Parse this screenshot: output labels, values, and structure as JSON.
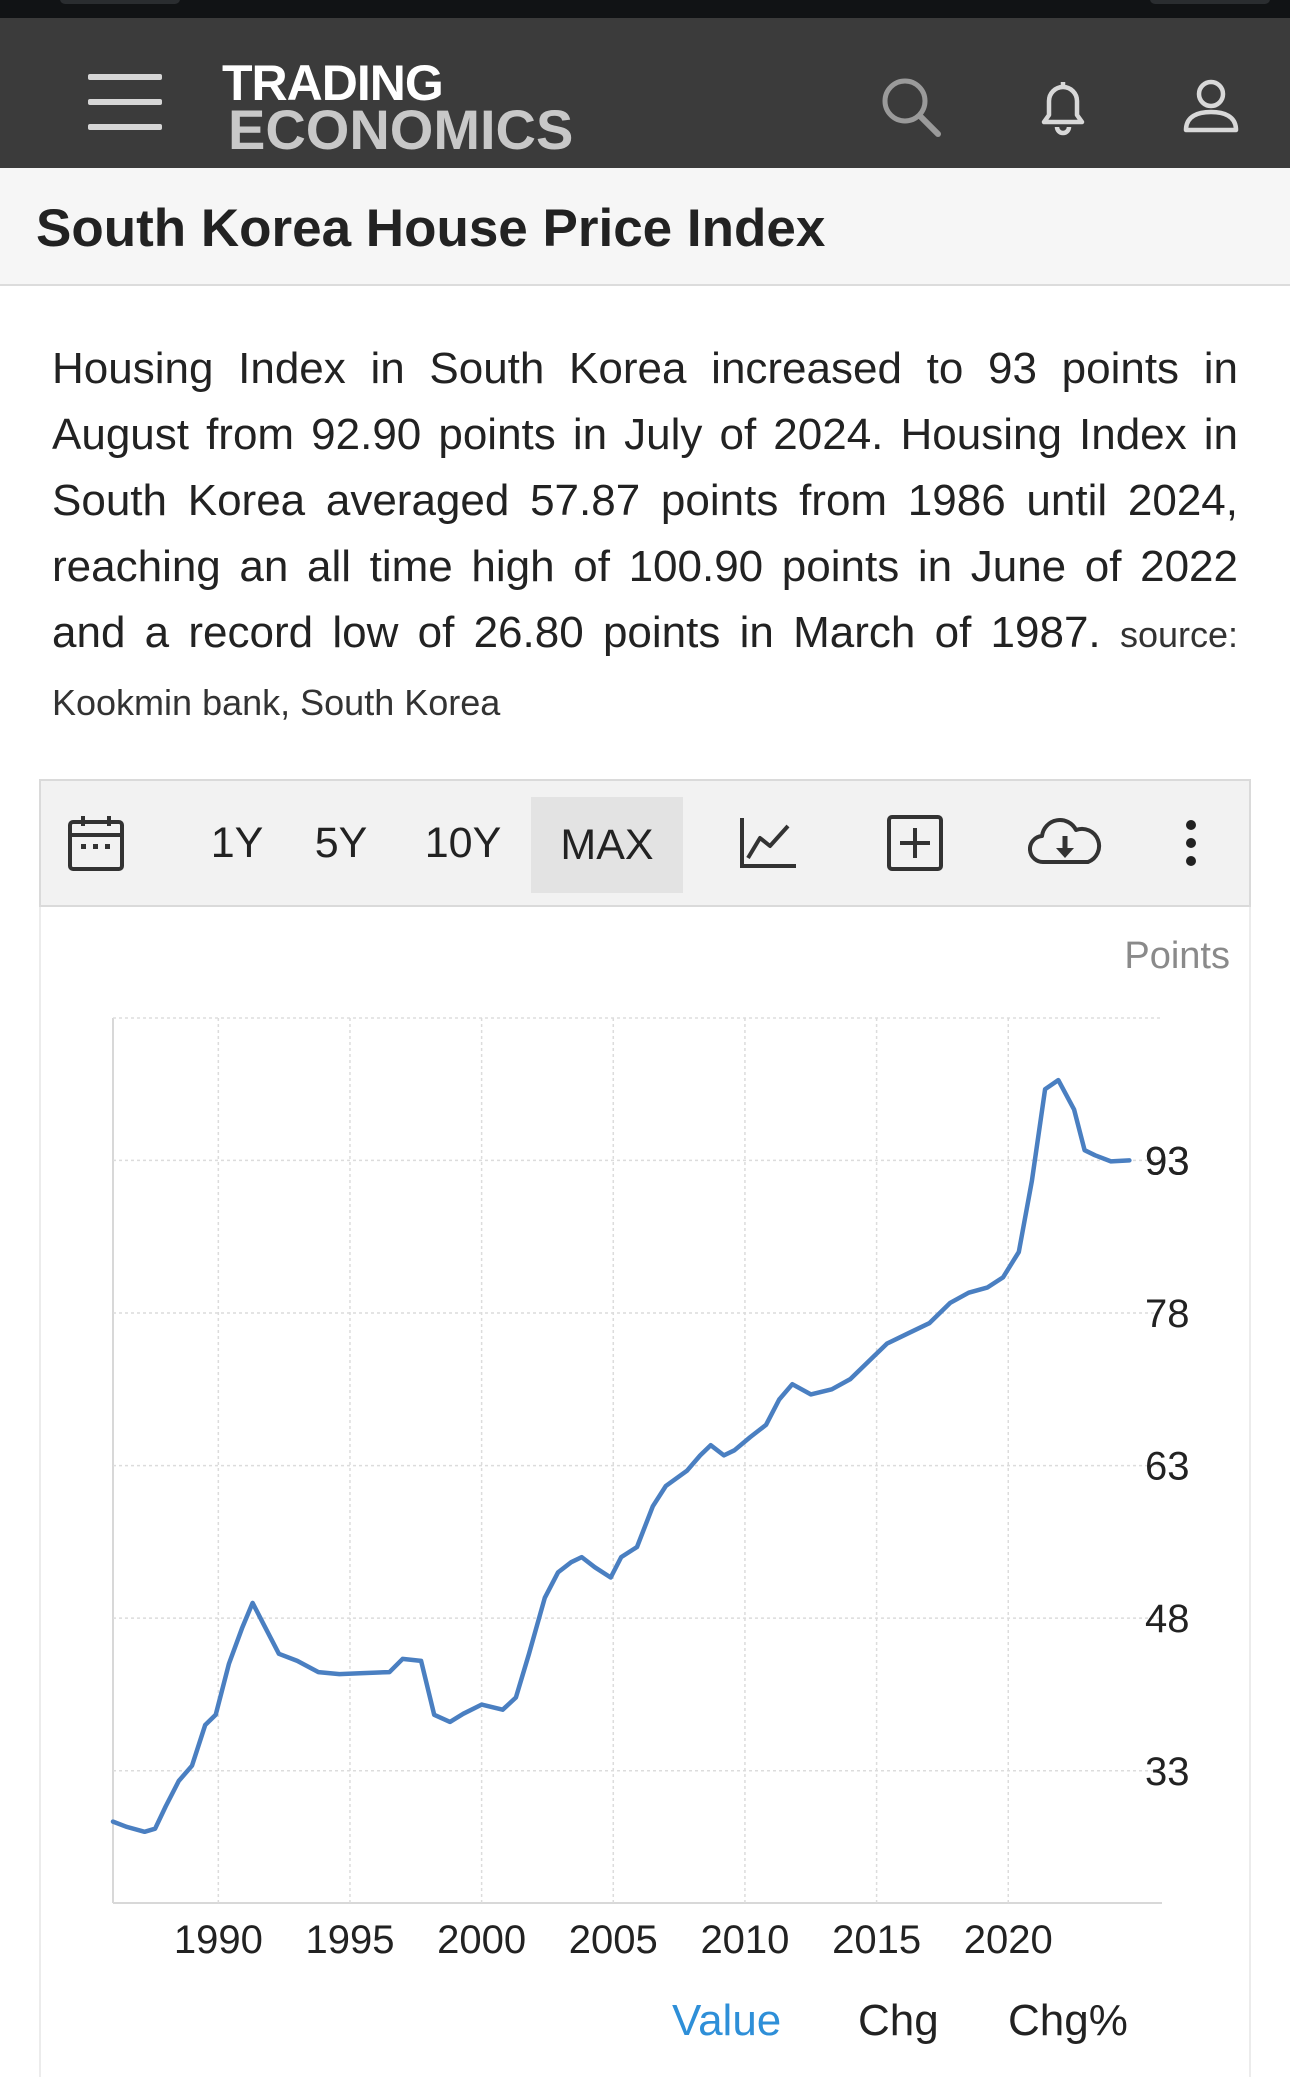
{
  "app": {
    "logo_line1": "TRADING",
    "logo_line2": "ECONOMICS"
  },
  "nav": {
    "menu_icon": "hamburger-icon",
    "search_icon": "search-icon",
    "bell_icon": "bell-icon",
    "user_icon": "user-icon"
  },
  "page": {
    "title": "South Korea House Price Index",
    "description": "Housing Index in South Korea increased to 93 points in August from 92.90 points in July of 2024. Housing Index in South Korea averaged 57.87 points from 1986 until 2024, reaching an all time high of 100.90 points in June of 2022 and a record low of 26.80 points in March of 1987.",
    "source": "source: Kookmin bank, South Korea"
  },
  "toolbar": {
    "calendar_icon": "calendar-icon",
    "ranges": [
      "1Y",
      "5Y",
      "10Y",
      "MAX"
    ],
    "active_range": "MAX",
    "chart_type_icon": "line-chart-icon",
    "compare_icon": "plus-square-icon",
    "download_icon": "cloud-download-icon",
    "more_icon": "more-vertical-icon"
  },
  "tabs": {
    "value": "Value",
    "chg": "Chg",
    "chg_pct": "Chg%",
    "active": "Value"
  },
  "colors": {
    "line": "#4a7fc1",
    "active_tab": "#2e8fd8",
    "navbar": "#3b3b3b"
  },
  "chart_data": {
    "type": "line",
    "unit": "Points",
    "grid": true,
    "y_ticks": [
      33,
      48,
      63,
      78,
      93
    ],
    "x_ticks": [
      1990,
      1995,
      2000,
      2005,
      2010,
      2015,
      2020
    ],
    "xlim": [
      1986,
      2024.7
    ],
    "ylim": [
      20,
      107
    ],
    "last_value_label": "93",
    "series": [
      {
        "x": [
          1986.0,
          1986.5,
          1987.2,
          1987.6,
          1988.0,
          1988.5,
          1989.0,
          1989.5,
          1989.9,
          1990.4,
          1990.9,
          1991.3,
          1991.7,
          1992.3,
          1993.0,
          1993.8,
          1994.6,
          1995.5,
          1996.5,
          1997.0,
          1997.7,
          1998.2,
          1998.8,
          1999.3,
          2000.0,
          2000.8,
          2001.3,
          2001.8,
          2002.4,
          2002.9,
          2003.4,
          2003.8,
          2004.3,
          2004.9,
          2005.3,
          2005.9,
          2006.5,
          2007.0,
          2007.8,
          2008.3,
          2008.7,
          2009.2,
          2009.6,
          2010.2,
          2010.8,
          2011.3,
          2011.8,
          2012.5,
          2013.3,
          2014.0,
          2014.8,
          2015.4,
          2016.2,
          2017.0,
          2017.8,
          2018.5,
          2019.2,
          2019.8,
          2020.4,
          2020.9,
          2021.4,
          2021.9,
          2022.5,
          2022.9,
          2023.3,
          2023.9,
          2024.6
        ],
        "y": [
          28.0,
          27.5,
          27.0,
          27.3,
          29.5,
          32.0,
          33.5,
          37.5,
          38.5,
          43.5,
          47.0,
          49.5,
          47.5,
          44.5,
          43.8,
          42.7,
          42.5,
          42.6,
          42.7,
          44.0,
          43.8,
          38.5,
          37.8,
          38.6,
          39.5,
          39.0,
          40.2,
          44.5,
          50.0,
          52.5,
          53.5,
          54.0,
          53.0,
          52.0,
          54.0,
          55.0,
          59.0,
          61.0,
          62.5,
          64.0,
          65.0,
          64.0,
          64.5,
          65.8,
          67.0,
          69.5,
          71.0,
          70.0,
          70.5,
          71.5,
          73.5,
          75.0,
          76.0,
          77.0,
          79.0,
          80.0,
          80.5,
          81.5,
          84.0,
          91.0,
          100.0,
          100.9,
          98.0,
          94.0,
          93.5,
          92.9,
          93.0
        ]
      }
    ]
  }
}
